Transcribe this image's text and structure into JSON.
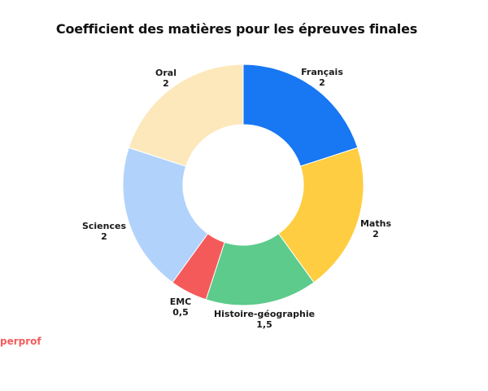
{
  "chart_data": {
    "type": "pie",
    "title": "Coefficient des matières pour les épreuves finales",
    "categories": [
      "Français",
      "Maths",
      "Histoire-géographie",
      "EMC",
      "Sciences",
      "Oral"
    ],
    "values": [
      2,
      2,
      1.5,
      0.5,
      2,
      2
    ],
    "value_labels": [
      "2",
      "2",
      "1,5",
      "0,5",
      "2",
      "2"
    ],
    "colors": [
      "#1877f2",
      "#ffcd41",
      "#5ccb8b",
      "#f55a5a",
      "#b1d2fb",
      "#fde8bb"
    ],
    "donut": true,
    "legend": "none"
  },
  "watermark": {
    "text": "perprof",
    "color": "#f25c5c"
  }
}
